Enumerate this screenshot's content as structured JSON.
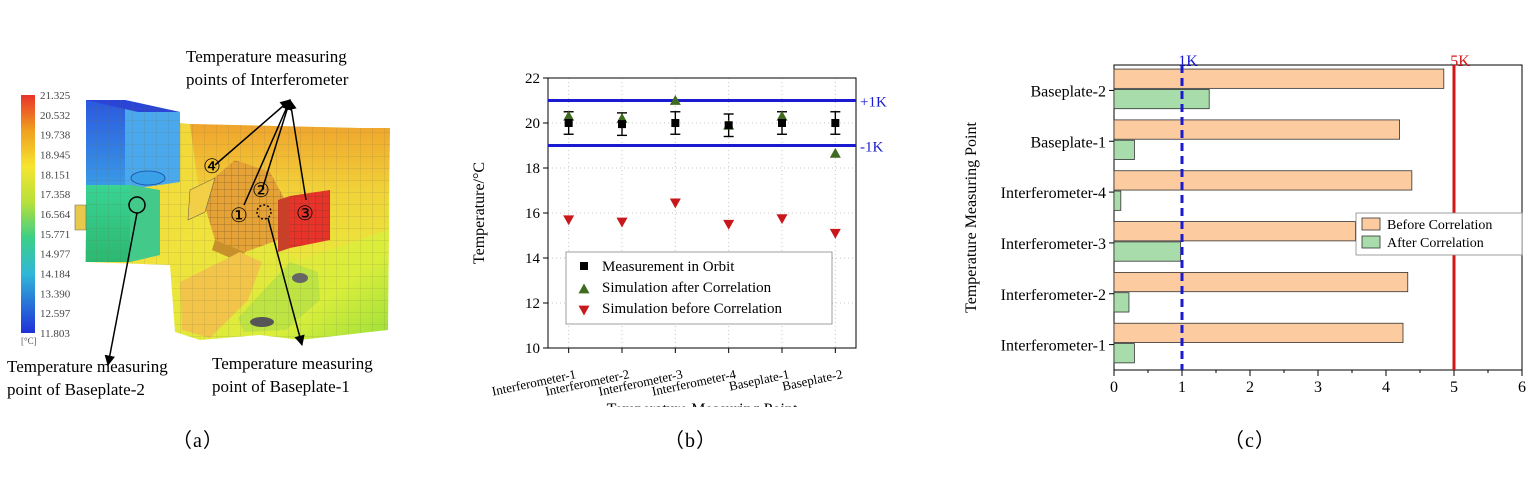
{
  "panel_a": {
    "label": "（a）",
    "colorbar_unit": "[°C]",
    "colorbar_ticks": [
      "21.325",
      "20.532",
      "19.738",
      "18.945",
      "18.151",
      "17.358",
      "16.564",
      "15.771",
      "14.977",
      "14.184",
      "13.390",
      "12.597",
      "11.803"
    ],
    "annotation_interferometer_line1": "Temperature measuring",
    "annotation_interferometer_line2": "points of Interferometer",
    "annotation_baseplate2_line1": "Temperature measuring",
    "annotation_baseplate2_line2": "point of Baseplate-2",
    "annotation_baseplate1_line1": "Temperature measuring",
    "annotation_baseplate1_line2": "point of Baseplate-1",
    "point_markers": [
      "④",
      "②",
      "①",
      "③"
    ],
    "colors": {
      "red": "#e8332a",
      "hot": "#f0a020",
      "warm": "#f6e52f",
      "mid": "#b7e03a",
      "cool": "#3ccf86",
      "cold": "#2f6fe0"
    }
  },
  "panel_b": {
    "label": "（b）"
  },
  "panel_c": {
    "label": "（c）"
  },
  "chart_data": [
    {
      "type": "scatter",
      "id": "b",
      "title": "",
      "xlabel": "Temperature Measuring Point",
      "ylabel": "Temperature/°C",
      "categories": [
        "Interferometer-1",
        "Interferometer-2",
        "Interferometer-3",
        "Interferometer-4",
        "Baseplate-1",
        "Baseplate-2"
      ],
      "ylim": [
        10,
        22
      ],
      "yticks": [
        10,
        12,
        14,
        16,
        18,
        20,
        22
      ],
      "series": [
        {
          "name": "Measurement in Orbit",
          "marker": "square",
          "color": "#000000",
          "values": [
            20.0,
            19.95,
            20.0,
            19.9,
            20.0,
            20.0
          ],
          "error": 0.5
        },
        {
          "name": "Simulation after Correlation",
          "marker": "triangle-up",
          "color": "#3e6b1f",
          "values": [
            20.3,
            20.2,
            21.0,
            19.9,
            20.3,
            18.65
          ]
        },
        {
          "name": "Simulation before Correlation",
          "marker": "triangle-down",
          "color": "#c8181c",
          "values": [
            15.7,
            15.6,
            16.45,
            15.5,
            15.75,
            15.1
          ]
        }
      ],
      "reference_lines": [
        {
          "value": 21,
          "label": "+1K",
          "color": "#1a1ad0"
        },
        {
          "value": 19,
          "label": "-1K",
          "color": "#1a1ad0"
        }
      ],
      "legend_position": "lower-right"
    },
    {
      "type": "bar",
      "id": "c",
      "orientation": "horizontal",
      "title": "",
      "xlabel": "",
      "ylabel": "Temperature Measuring Point",
      "categories": [
        "Interferometer-1",
        "Interferometer-2",
        "Interferometer-3",
        "Interferometer-4",
        "Baseplate-1",
        "Baseplate-2"
      ],
      "xlim": [
        0,
        6
      ],
      "xticks": [
        0,
        1,
        2,
        3,
        4,
        5,
        6
      ],
      "series": [
        {
          "name": "Before Correlation",
          "color": "#fccb9f",
          "values": [
            4.25,
            4.32,
            3.55,
            4.38,
            4.2,
            4.85
          ]
        },
        {
          "name": "After Correlation",
          "color": "#a8dcaa",
          "values": [
            0.3,
            0.22,
            0.98,
            0.1,
            0.3,
            1.4
          ]
        }
      ],
      "reference_lines": [
        {
          "value": 1,
          "label": "1K",
          "color": "#1a1ad0",
          "style": "dashed"
        },
        {
          "value": 5,
          "label": "5K",
          "color": "#d01818",
          "style": "solid"
        }
      ],
      "legend_position": "center-right"
    }
  ]
}
